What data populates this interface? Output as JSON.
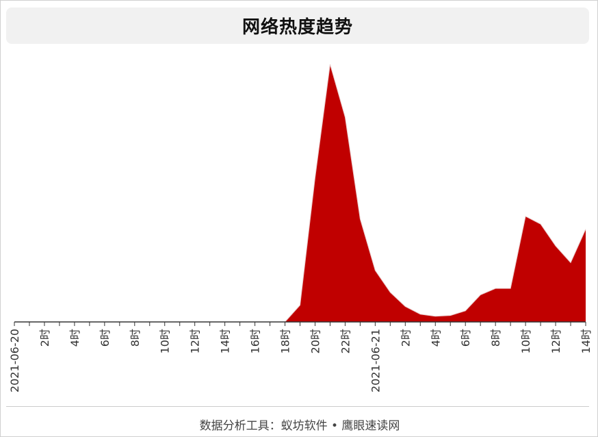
{
  "title": "网络热度趋势",
  "footer": "数据分析工具：蚁坊软件 • 鹰眼速读网",
  "colors": {
    "area_fill": "#c00000",
    "area_stroke": "#e8c8c8",
    "axis": "#333333",
    "tick_label": "#333333"
  },
  "chart_data": {
    "type": "area",
    "title": "网络热度趋势",
    "xlabel": "",
    "ylabel": "",
    "ylim": [
      0,
      100
    ],
    "y_axis_visible": false,
    "grid": false,
    "legend": "none",
    "tick_labels": [
      "2021-06-20",
      "2时",
      "4时",
      "6时",
      "8时",
      "10时",
      "12时",
      "14时",
      "16时",
      "18时",
      "20时",
      "22时",
      "2021-06-21",
      "2时",
      "4时",
      "6时",
      "8时",
      "10时",
      "12时",
      "14时"
    ],
    "x_hours": [
      0,
      1,
      2,
      3,
      4,
      5,
      6,
      7,
      8,
      9,
      10,
      11,
      12,
      13,
      14,
      15,
      16,
      17,
      18,
      19,
      20,
      21,
      22,
      23,
      24,
      25,
      26,
      27,
      28,
      29,
      30,
      31,
      32,
      33,
      34,
      35,
      36,
      37,
      38
    ],
    "values": [
      0,
      0,
      0,
      0,
      0,
      0,
      0,
      0,
      0,
      0,
      0,
      0,
      0,
      0,
      0,
      0,
      0,
      0,
      0,
      6.5,
      56,
      100,
      79.5,
      40,
      20,
      11.5,
      6,
      3,
      2.2,
      2.5,
      4.3,
      10.5,
      13,
      13,
      41,
      38,
      29.5,
      23,
      36
    ]
  }
}
